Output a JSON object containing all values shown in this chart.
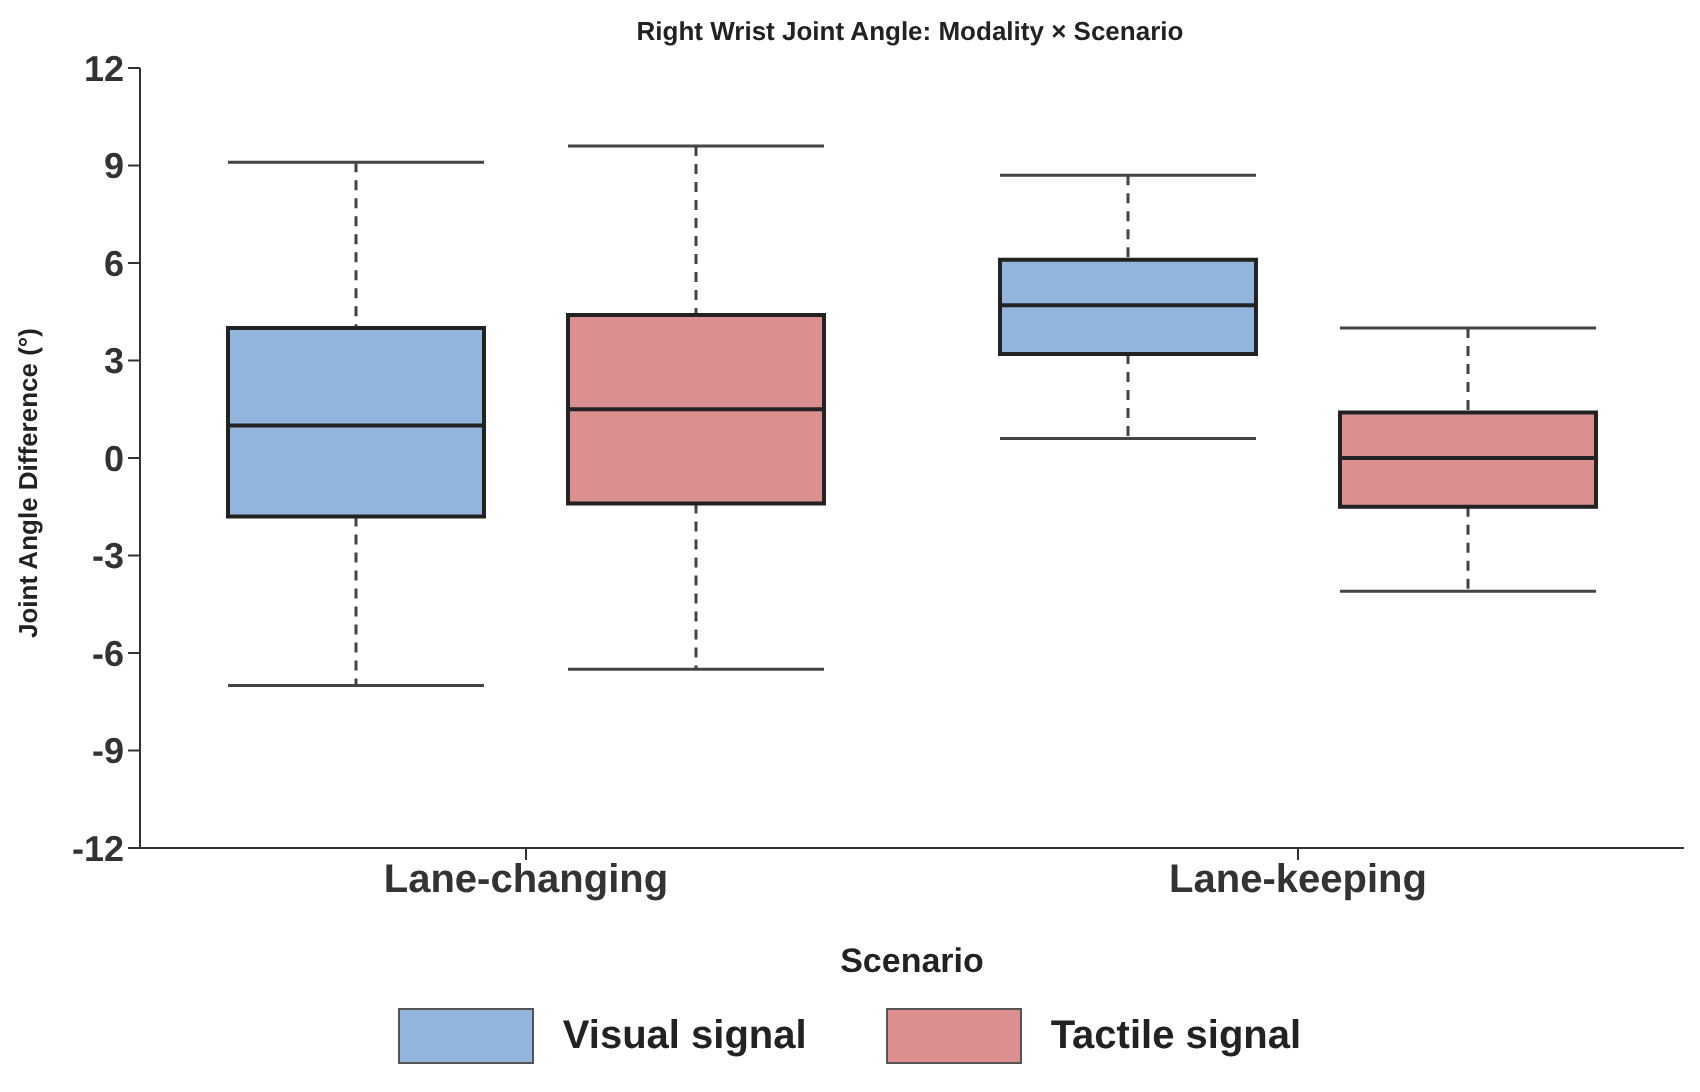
{
  "chart_data": {
    "type": "box",
    "title": "Right Wrist Joint Angle: Modality × Scenario",
    "xlabel": "Scenario",
    "ylabel": "Joint Angle Difference (°)",
    "categories": [
      "Lane-changing",
      "Lane-keeping"
    ],
    "ylim": [
      -12,
      12
    ],
    "yticks": [
      -12,
      -9,
      -6,
      -3,
      0,
      3,
      6,
      9,
      12
    ],
    "grid": false,
    "legend": "bottom",
    "series": [
      {
        "name": "Visual signal",
        "color": "#92b5de",
        "boxes": [
          {
            "low": -7.0,
            "q1": -1.8,
            "median": 1.0,
            "q3": 4.0,
            "high": 9.1
          },
          {
            "low": 0.6,
            "q1": 3.2,
            "median": 4.7,
            "q3": 6.1,
            "high": 8.7
          }
        ]
      },
      {
        "name": "Tactile signal",
        "color": "#dc8f8f",
        "boxes": [
          {
            "low": -6.5,
            "q1": -1.4,
            "median": 1.5,
            "q3": 4.4,
            "high": 9.6
          },
          {
            "low": -4.1,
            "q1": -1.5,
            "median": 0.0,
            "q3": 1.4,
            "high": 4.0
          }
        ]
      }
    ]
  }
}
